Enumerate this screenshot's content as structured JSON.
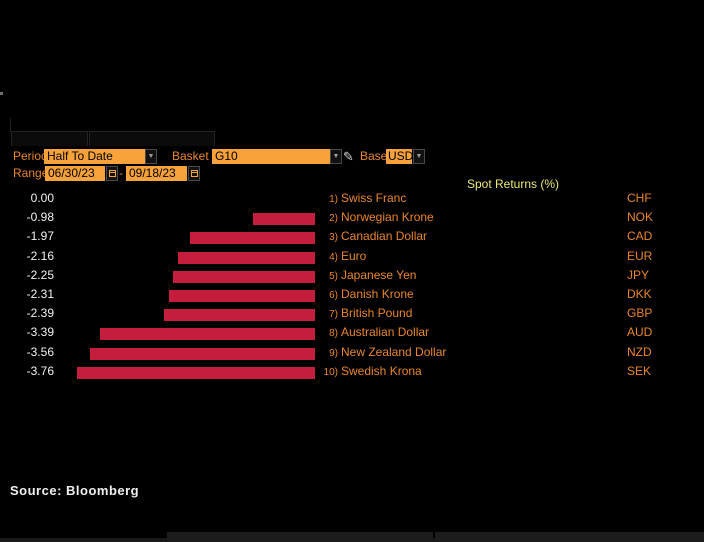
{
  "toolbar": {
    "period_label": "Period",
    "period_value": "Half To Date",
    "basket_label": "Basket",
    "basket_value": "G10",
    "base_label": "Base",
    "base_value": "USD",
    "range_label": "Range",
    "range_start": "06/30/23",
    "range_separator": "-",
    "range_end": "09/18/23",
    "dropdown_arrow_glyph": "▼",
    "pencil_glyph": "✎"
  },
  "chart_data": {
    "type": "bar",
    "orientation": "horizontal",
    "title": "Spot Returns (%)",
    "xlim": [
      -4.0,
      0.0
    ],
    "grid": false,
    "bar_color": "#c41e3c",
    "value_label_color": "#f2f2f2",
    "category_color": "#e8862d",
    "rows": [
      {
        "rank": "1)",
        "name": "Swiss Franc",
        "ticker": "CHF",
        "value": 0.0,
        "value_label": "0.00"
      },
      {
        "rank": "2)",
        "name": "Norwegian Krone",
        "ticker": "NOK",
        "value": -0.98,
        "value_label": "-0.98"
      },
      {
        "rank": "3)",
        "name": "Canadian Dollar",
        "ticker": "CAD",
        "value": -1.97,
        "value_label": "-1.97"
      },
      {
        "rank": "4)",
        "name": "Euro",
        "ticker": "EUR",
        "value": -2.16,
        "value_label": "-2.16"
      },
      {
        "rank": "5)",
        "name": "Japanese Yen",
        "ticker": "JPY",
        "value": -2.25,
        "value_label": "-2.25"
      },
      {
        "rank": "6)",
        "name": "Danish Krone",
        "ticker": "DKK",
        "value": -2.31,
        "value_label": "-2.31"
      },
      {
        "rank": "7)",
        "name": "British Pound",
        "ticker": "GBP",
        "value": -2.39,
        "value_label": "-2.39"
      },
      {
        "rank": "8)",
        "name": "Australian Dollar",
        "ticker": "AUD",
        "value": -3.39,
        "value_label": "-3.39"
      },
      {
        "rank": "9)",
        "name": "New Zealand Dollar",
        "ticker": "NZD",
        "value": -3.56,
        "value_label": "-3.56"
      },
      {
        "rank": "10)",
        "name": "Swedish Krona",
        "ticker": "SEK",
        "value": -3.76,
        "value_label": "-3.76"
      }
    ]
  },
  "footer": {
    "source": "Source:  Bloomberg"
  },
  "colors": {
    "background": "#000000",
    "field_orange": "#f7a23b",
    "text_orange": "#e8862d",
    "title_yellow": "#ede878",
    "bar_red": "#c41e3c"
  }
}
